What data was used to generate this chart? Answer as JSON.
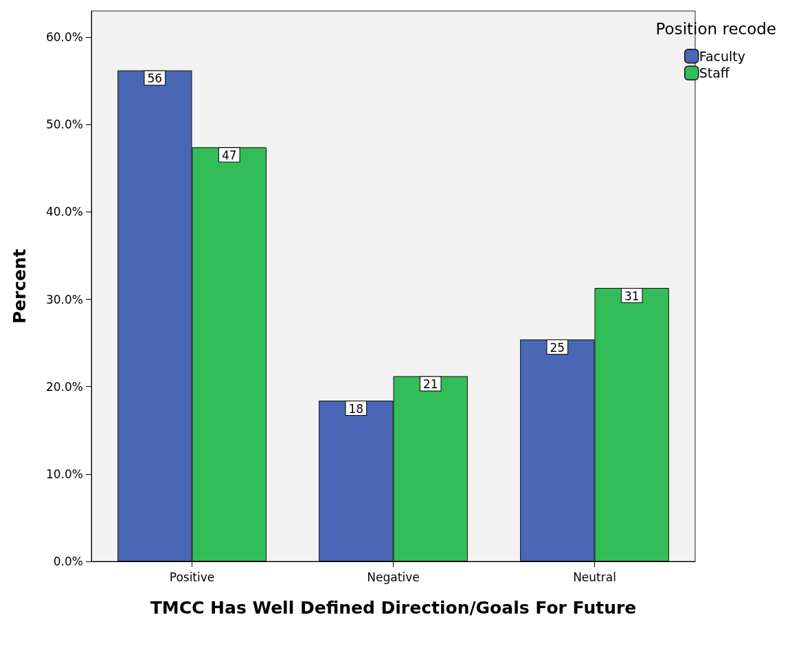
{
  "chart_data": {
    "type": "bar",
    "xlabel": "TMCC Has Well Defined Direction/Goals For Future",
    "ylabel": "Percent",
    "legend_title": "Position recode",
    "legend": "top right",
    "grid": false,
    "categories": [
      "Positive",
      "Negative",
      "Neutral"
    ],
    "series": [
      {
        "name": "Faculty",
        "color": "#4a67b5",
        "values": [
          56.2,
          18.4,
          25.4
        ],
        "value_labels": [
          "56",
          "18",
          "25"
        ]
      },
      {
        "name": "Staff",
        "color": "#33bd58",
        "values": [
          47.4,
          21.2,
          31.3
        ],
        "value_labels": [
          "47",
          "21",
          "31"
        ]
      }
    ],
    "ylim": [
      0,
      63
    ],
    "yticks": [
      {
        "value": 0,
        "label": "0.0%"
      },
      {
        "value": 10,
        "label": "10.0%"
      },
      {
        "value": 20,
        "label": "20.0%"
      },
      {
        "value": 30,
        "label": "30.0%"
      },
      {
        "value": 40,
        "label": "40.0%"
      },
      {
        "value": 50,
        "label": "50.0%"
      },
      {
        "value": 60,
        "label": "60.0%"
      }
    ]
  }
}
